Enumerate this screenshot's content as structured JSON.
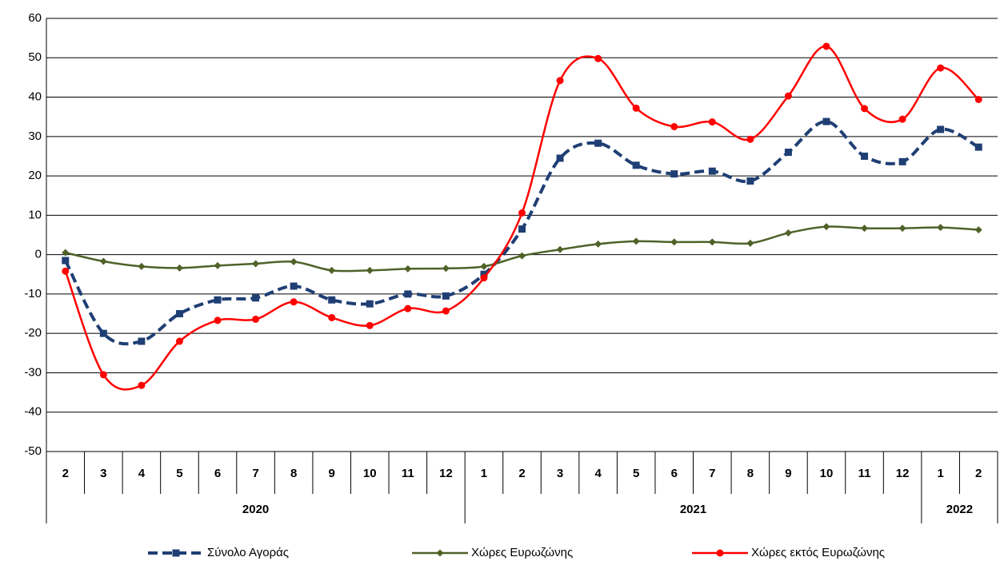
{
  "chart_data": {
    "type": "line",
    "categories": [
      "2",
      "3",
      "4",
      "5",
      "6",
      "7",
      "8",
      "9",
      "10",
      "11",
      "12",
      "1",
      "2",
      "3",
      "4",
      "5",
      "6",
      "7",
      "8",
      "9",
      "10",
      "11",
      "12",
      "1",
      "2"
    ],
    "years": [
      "2020",
      "2021",
      "2022"
    ],
    "year_spans": [
      11,
      12,
      2
    ],
    "series": [
      {
        "name": "Σύνολο Αγοράς",
        "color": "#1f3f74",
        "marker": "square",
        "dash": true,
        "values": [
          -1.5,
          -20,
          -22,
          -15,
          -11.5,
          -11,
          -8,
          -11.5,
          -12.5,
          -10,
          -10.5,
          -5,
          6.5,
          24.5,
          28.3,
          22.7,
          20.5,
          21.2,
          18.7,
          26,
          33.8,
          25,
          23.6,
          31.8,
          27.3
        ]
      },
      {
        "name": "Χώρες Ευρωζώνης",
        "color": "#4f6228",
        "marker": "diamond",
        "dash": false,
        "values": [
          0.5,
          -1.7,
          -3,
          -3.4,
          -2.8,
          -2.3,
          -1.8,
          -4,
          -4,
          -3.6,
          -3.5,
          -3,
          -0.3,
          1.3,
          2.7,
          3.4,
          3.2,
          3.2,
          2.9,
          5.5,
          7.1,
          6.7,
          6.7,
          6.9,
          6.3
        ]
      },
      {
        "name": "Χώρες εκτός Ευρωζώνης",
        "color": "#ff0000",
        "marker": "circle",
        "dash": false,
        "values": [
          -4.2,
          -30.5,
          -33.2,
          -22,
          -16.7,
          -16.4,
          -12,
          -16,
          -18,
          -13.7,
          -14.3,
          -5.9,
          10.6,
          44.2,
          49.8,
          37.2,
          32.5,
          33.7,
          29.3,
          40.3,
          52.9,
          37.1,
          34.4,
          47.4,
          39.4
        ]
      }
    ],
    "ylim": [
      -50,
      60
    ],
    "yticks": [
      -50,
      -40,
      -30,
      -20,
      -10,
      0,
      10,
      20,
      30,
      40,
      50,
      60
    ],
    "grid": true,
    "legend": "bottom"
  }
}
